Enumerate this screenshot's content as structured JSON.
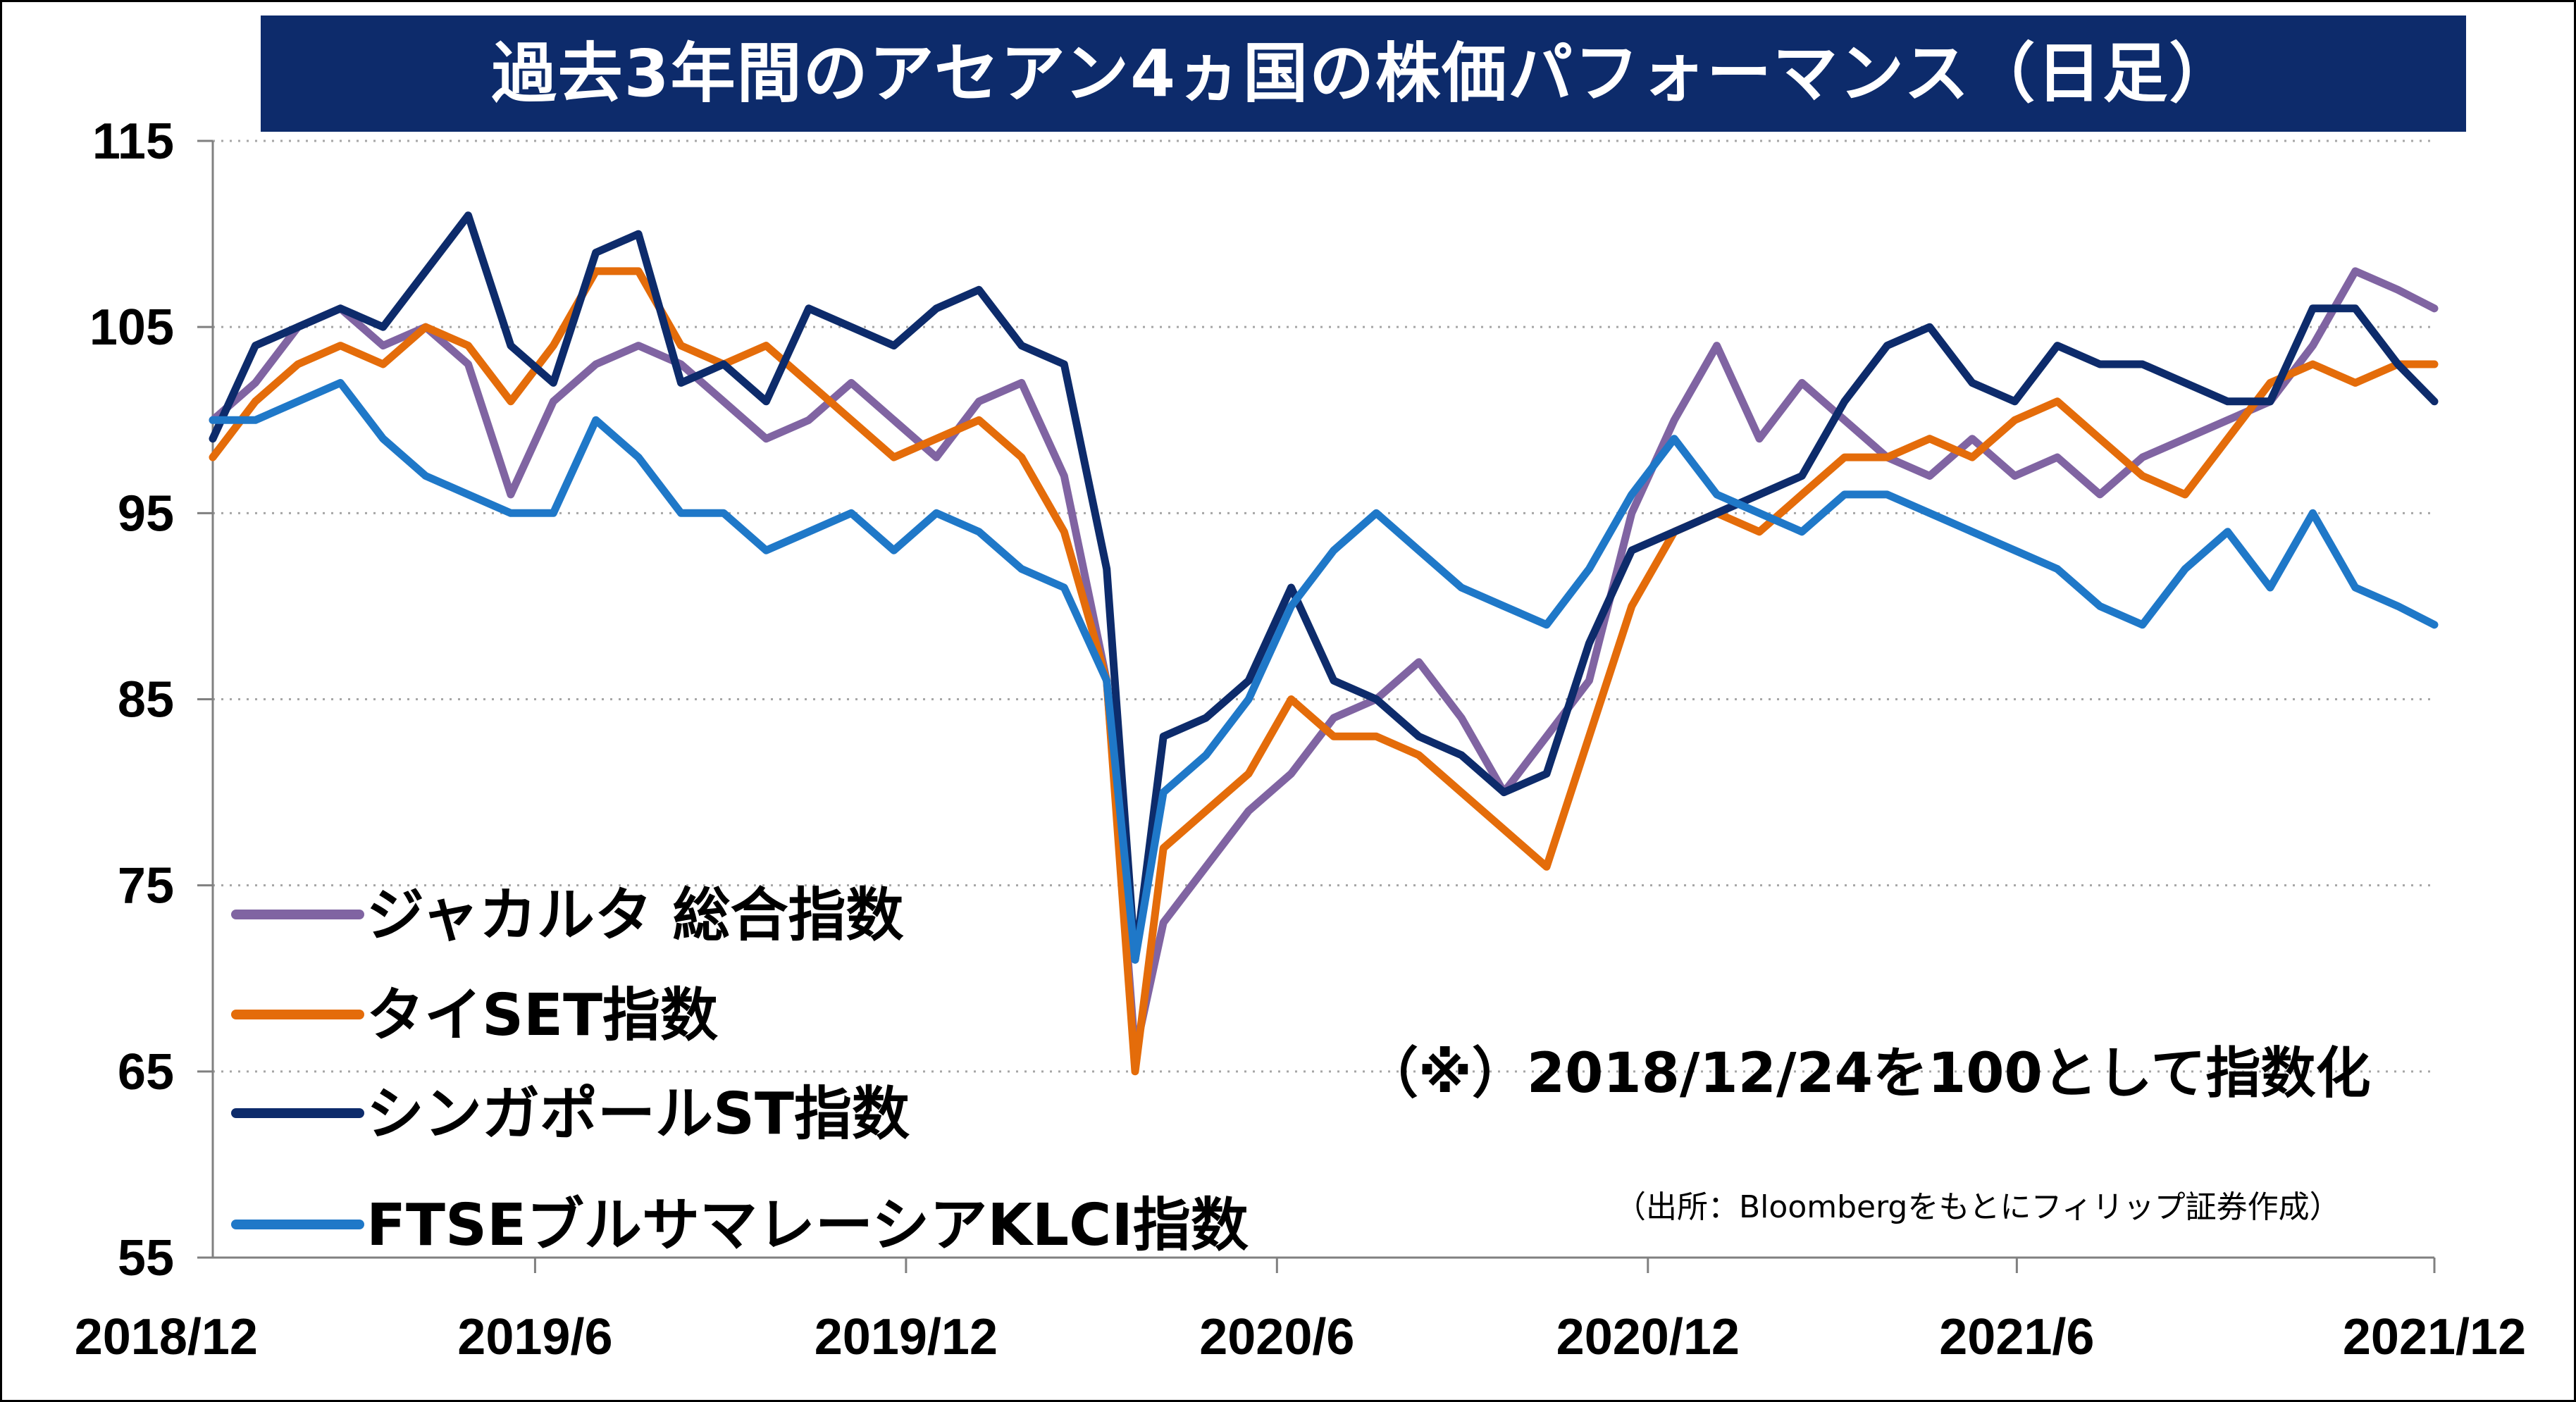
{
  "chart_data": {
    "type": "line",
    "title": "過去3年間のアセアン4ヵ国の株価パフォーマンス（日足）",
    "ylim": [
      55,
      115
    ],
    "yticks": [
      55,
      65,
      75,
      85,
      95,
      105,
      115
    ],
    "xlim": [
      "2018/12/24",
      "2021/12/24"
    ],
    "xticks": [
      "2018/12",
      "2019/6",
      "2019/12",
      "2020/6",
      "2020/12",
      "2021/6",
      "2021/12"
    ],
    "grid": "horizontal dotted",
    "legend_position": "bottom-left",
    "annotation": "（※）2018/12/24を100として指数化",
    "source": "（出所：Bloombergをもとにフィリップ証券作成）",
    "x": [
      "2018/12/24",
      "2019/1/14",
      "2019/2/4",
      "2019/2/25",
      "2019/3/18",
      "2019/4/8",
      "2019/4/29",
      "2019/5/20",
      "2019/6/10",
      "2019/7/1",
      "2019/7/22",
      "2019/8/12",
      "2019/9/2",
      "2019/9/23",
      "2019/10/14",
      "2019/11/4",
      "2019/11/25",
      "2019/12/16",
      "2020/1/6",
      "2020/1/27",
      "2020/2/17",
      "2020/3/9",
      "2020/3/23",
      "2020/4/6",
      "2020/4/27",
      "2020/5/18",
      "2020/6/8",
      "2020/6/29",
      "2020/7/20",
      "2020/8/10",
      "2020/8/31",
      "2020/9/21",
      "2020/10/12",
      "2020/11/2",
      "2020/11/23",
      "2020/12/14",
      "2021/1/4",
      "2021/1/25",
      "2021/2/15",
      "2021/3/8",
      "2021/3/29",
      "2021/4/19",
      "2021/5/10",
      "2021/5/31",
      "2021/6/21",
      "2021/7/12",
      "2021/8/2",
      "2021/8/23",
      "2021/9/13",
      "2021/10/4",
      "2021/10/25",
      "2021/11/15",
      "2021/12/6",
      "2021/12/24"
    ],
    "series": [
      {
        "name": "ジャカルタ 総合指数",
        "color": "#8064a2",
        "values": [
          100,
          102,
          105,
          106,
          104,
          105,
          103,
          96,
          101,
          103,
          104,
          103,
          101,
          99,
          100,
          102,
          100,
          98,
          101,
          102,
          97,
          86,
          66,
          73,
          76,
          79,
          81,
          84,
          85,
          87,
          84,
          80,
          83,
          86,
          95,
          100,
          104,
          99,
          102,
          100,
          98,
          97,
          99,
          97,
          98,
          96,
          98,
          99,
          100,
          101,
          104,
          108,
          107,
          106
        ]
      },
      {
        "name": "タイSET指数",
        "color": "#e46c0a",
        "values": [
          98,
          101,
          103,
          104,
          103,
          105,
          104,
          101,
          104,
          108,
          108,
          104,
          103,
          104,
          102,
          100,
          98,
          99,
          100,
          98,
          94,
          86,
          65,
          77,
          79,
          81,
          85,
          83,
          83,
          82,
          80,
          78,
          76,
          83,
          90,
          94,
          95,
          94,
          96,
          98,
          98,
          99,
          98,
          100,
          101,
          99,
          97,
          96,
          99,
          102,
          103,
          102,
          103,
          103
        ]
      },
      {
        "name": "シンガポールST指数",
        "color": "#0d2b6b",
        "values": [
          99,
          104,
          105,
          106,
          105,
          108,
          111,
          104,
          102,
          109,
          110,
          102,
          103,
          101,
          106,
          105,
          104,
          106,
          107,
          104,
          103,
          92,
          71,
          83,
          84,
          86,
          91,
          86,
          85,
          83,
          82,
          80,
          81,
          88,
          93,
          94,
          95,
          96,
          97,
          101,
          104,
          105,
          102,
          101,
          104,
          103,
          103,
          102,
          101,
          101,
          106,
          106,
          103,
          101
        ]
      },
      {
        "name": "FTSEブルサマレーシアKLCI指数",
        "color": "#1f78c8",
        "values": [
          100,
          100,
          101,
          102,
          99,
          97,
          96,
          95,
          95,
          100,
          98,
          95,
          95,
          93,
          94,
          95,
          93,
          95,
          94,
          92,
          91,
          86,
          71,
          80,
          82,
          85,
          90,
          93,
          95,
          93,
          91,
          90,
          89,
          92,
          96,
          99,
          96,
          95,
          94,
          96,
          96,
          95,
          94,
          93,
          92,
          90,
          89,
          92,
          94,
          91,
          95,
          91,
          90,
          89
        ]
      }
    ]
  }
}
